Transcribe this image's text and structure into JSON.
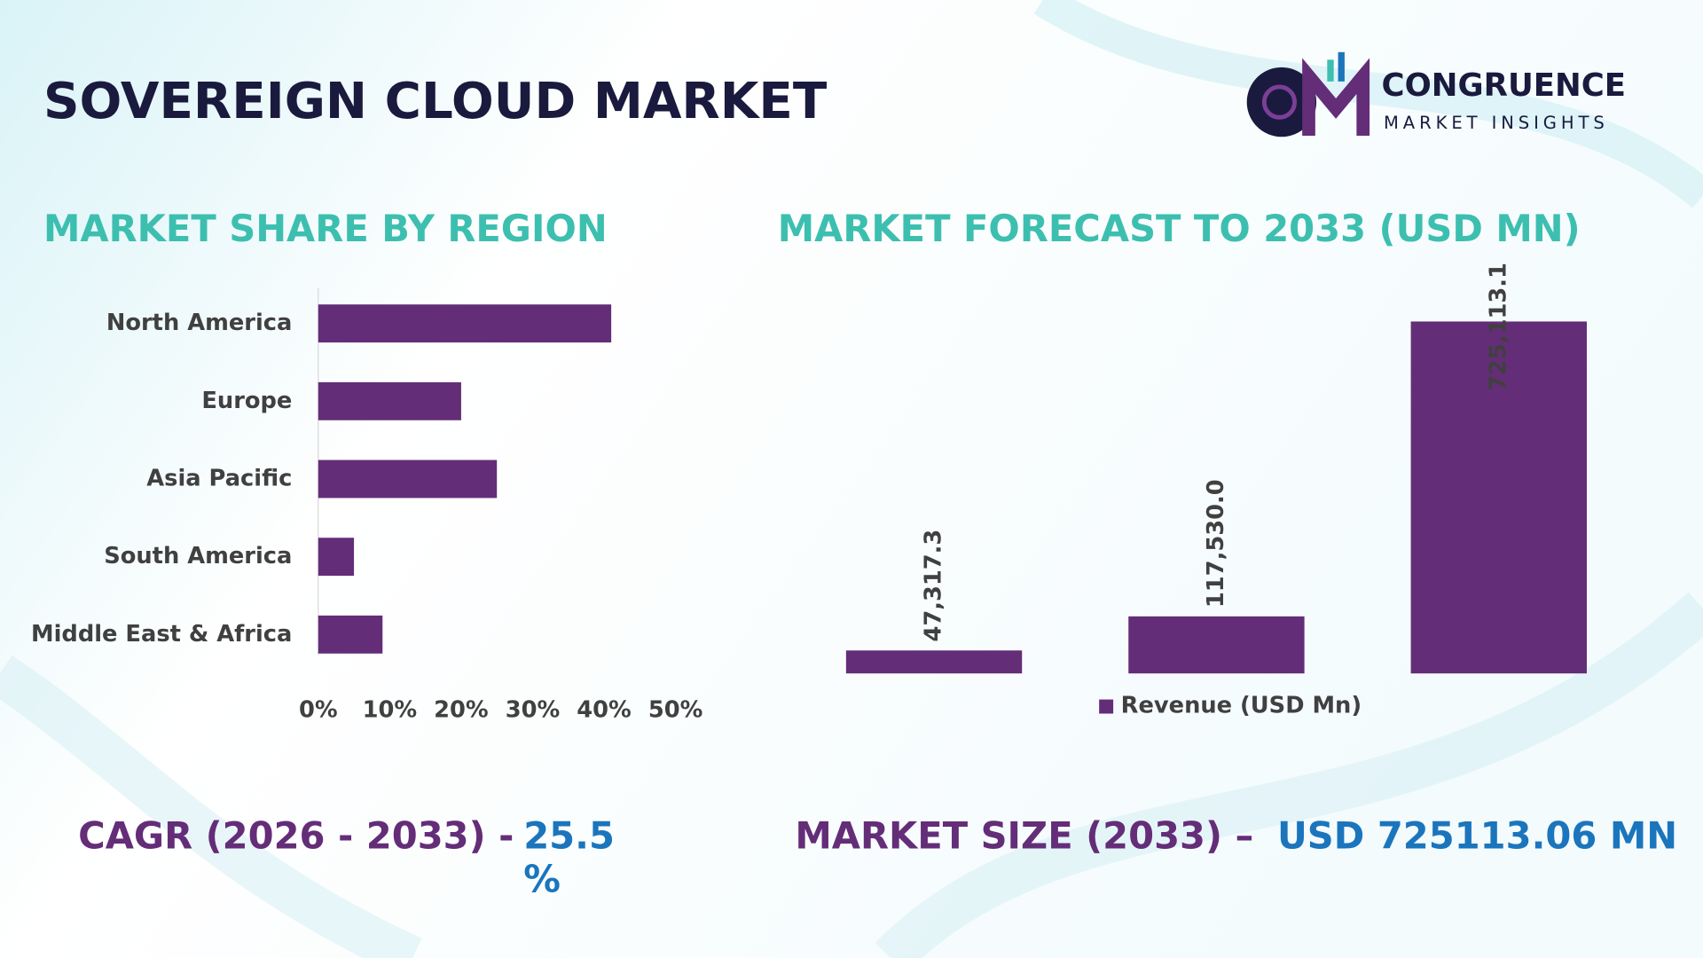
{
  "header": {
    "title": "SOVEREIGN CLOUD MARKET",
    "brand": "CONGRUENCE",
    "brand_sub": "MARKET INSIGHTS"
  },
  "chart_data": [
    {
      "type": "hbar",
      "title": "MARKET SHARE BY REGION",
      "categories": [
        "North America",
        "Europe",
        "Asia Pacific",
        "South America",
        "Middle East & Africa"
      ],
      "values": [
        41,
        20,
        25,
        5,
        9
      ],
      "color": "#642d78",
      "xlim": [
        0,
        50
      ],
      "xticks": [
        {
          "value": 0,
          "label": "0%"
        },
        {
          "value": 10,
          "label": "10%"
        },
        {
          "value": 20,
          "label": "20%"
        },
        {
          "value": 30,
          "label": "30%"
        },
        {
          "value": 40,
          "label": "40%"
        },
        {
          "value": 50,
          "label": "50%"
        }
      ]
    },
    {
      "type": "bar",
      "title": "MARKET FORECAST TO 2033 (USD MN)",
      "categories": [
        null,
        null,
        null
      ],
      "series": [
        {
          "name": "Revenue (USD Mn)",
          "color": "#642d78",
          "values": [
            47317.3,
            117530.0,
            725113.1
          ],
          "value_labels": [
            "47,317.3",
            "117,530.0",
            "725,113.1"
          ]
        }
      ]
    }
  ],
  "footer": {
    "cagr_label": "CAGR (2026 - 2033) -",
    "cagr_value": "25.5 %",
    "size_label": "MARKET SIZE (2033) –",
    "size_value": "USD 725113.06 MN"
  }
}
